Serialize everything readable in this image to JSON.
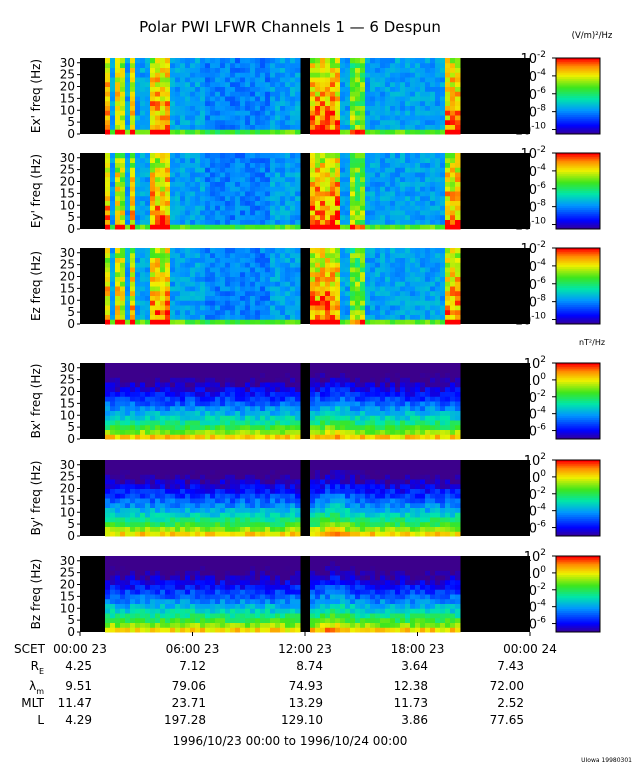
{
  "chart_data": {
    "type": "heatmap",
    "title": "Polar PWI LFWR Channels 1 — 6 Despun",
    "time_range": "1996/10/23 00:00 to 1996/10/24 00:00",
    "credit": "UIowa 19980301",
    "x_axis": {
      "ticks": [
        "00:00 23",
        "06:00 23",
        "12:00 23",
        "18:00 23",
        "00:00 24"
      ],
      "range_hours": [
        0,
        24
      ],
      "tick_hours": [
        0,
        6,
        12,
        18,
        24
      ]
    },
    "y_ticks": [
      0,
      5,
      10,
      15,
      20,
      25,
      30
    ],
    "y_range": [
      0,
      32
    ],
    "data_gaps_hours": [
      [
        0,
        1.3
      ],
      [
        11.85,
        12.15
      ],
      [
        20.4,
        24
      ]
    ],
    "colorbar_units": {
      "electric": "(V/m)²/Hz",
      "magnetic": "nT²/Hz"
    },
    "panels": [
      {
        "ylabel": "Ex' freq (Hz)",
        "type": "electric",
        "cb_ticks": [
          {
            "p": -2,
            "v": -2
          },
          {
            "p": -4,
            "v": -4
          },
          {
            "p": -6,
            "v": -6
          },
          {
            "p": -8,
            "v": -8
          },
          {
            "p": -10,
            "v": -10
          }
        ],
        "cb_range": [
          -10.5,
          -2
        ]
      },
      {
        "ylabel": "Ey' freq (Hz)",
        "type": "electric",
        "cb_ticks": [
          {
            "p": -2,
            "v": -2
          },
          {
            "p": -4,
            "v": -4
          },
          {
            "p": -6,
            "v": -6
          },
          {
            "p": -8,
            "v": -8
          },
          {
            "p": -10,
            "v": -10
          }
        ],
        "cb_range": [
          -10.5,
          -2
        ]
      },
      {
        "ylabel": "Ez freq (Hz)",
        "type": "electric",
        "cb_ticks": [
          {
            "p": -2,
            "v": -2
          },
          {
            "p": -4,
            "v": -4
          },
          {
            "p": -6,
            "v": -6
          },
          {
            "p": -8,
            "v": -8
          },
          {
            "p": -10,
            "v": -10
          }
        ],
        "cb_range": [
          -10.5,
          -2
        ]
      },
      {
        "ylabel": "Bx' freq (Hz)",
        "type": "magnetic",
        "cb_ticks": [
          {
            "p": 2,
            "v": 2
          },
          {
            "p": 0,
            "v": 0
          },
          {
            "p": -2,
            "v": -2
          },
          {
            "p": -4,
            "v": -4
          },
          {
            "p": -6,
            "v": -6
          }
        ],
        "cb_range": [
          -7,
          2
        ]
      },
      {
        "ylabel": "By' freq (Hz)",
        "type": "magnetic",
        "cb_ticks": [
          {
            "p": 2,
            "v": 2
          },
          {
            "p": 0,
            "v": 0
          },
          {
            "p": -2,
            "v": -2
          },
          {
            "p": -4,
            "v": -4
          },
          {
            "p": -6,
            "v": -6
          }
        ],
        "cb_range": [
          -7,
          2
        ]
      },
      {
        "ylabel": "Bz freq (Hz)",
        "type": "magnetic",
        "cb_ticks": [
          {
            "p": 2,
            "v": 2
          },
          {
            "p": 0,
            "v": 0
          },
          {
            "p": -2,
            "v": -2
          },
          {
            "p": -4,
            "v": -4
          },
          {
            "p": -6,
            "v": -6
          }
        ],
        "cb_range": [
          -7,
          2
        ]
      }
    ],
    "ephemeris": {
      "header_label": "SCET",
      "rows": [
        {
          "label": "R",
          "sub": "E",
          "values": [
            "4.25",
            "7.12",
            "8.74",
            "3.64",
            "7.43"
          ]
        },
        {
          "label": "λ",
          "sub": "m",
          "values": [
            "9.51",
            "79.06",
            "74.93",
            "12.38",
            "72.00"
          ]
        },
        {
          "label": "MLT",
          "sub": "",
          "values": [
            "11.47",
            "23.71",
            "13.29",
            "11.73",
            "2.52"
          ]
        },
        {
          "label": "L",
          "sub": "",
          "values": [
            "4.29",
            "197.28",
            "129.10",
            "3.86",
            "77.65"
          ]
        }
      ]
    }
  }
}
